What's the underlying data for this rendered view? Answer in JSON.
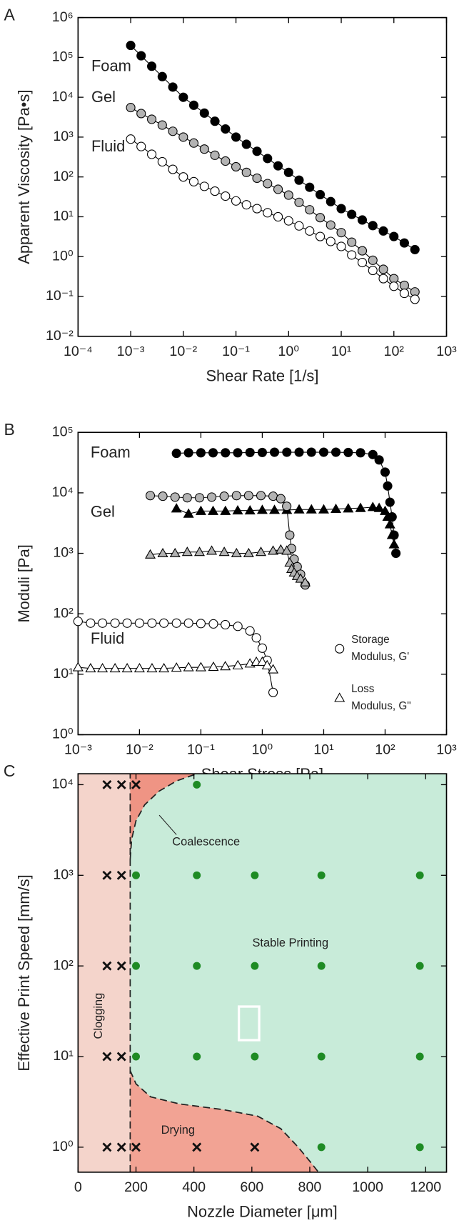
{
  "chart_data": [
    {
      "type": "line",
      "panel_label": "A",
      "y_label": "Apparent Viscosity [Pa•s]",
      "x_label": "Shear Rate [1/s]",
      "log_x": true,
      "log_y": true,
      "xlim": [
        0.0001,
        1000
      ],
      "ylim": [
        0.01,
        1000000
      ],
      "xticks": [
        {
          "value": 0.0001,
          "label": "10⁻⁴"
        },
        {
          "value": 0.001,
          "label": "10⁻³"
        },
        {
          "value": 0.01,
          "label": "10⁻²"
        },
        {
          "value": 0.1,
          "label": "10⁻¹"
        },
        {
          "value": 1,
          "label": "10⁰"
        },
        {
          "value": 10,
          "label": "10¹"
        },
        {
          "value": 100,
          "label": "10²"
        },
        {
          "value": 1000,
          "label": "10³"
        }
      ],
      "yticks": [
        {
          "value": 0.01,
          "label": "10⁻²"
        },
        {
          "value": 0.1,
          "label": "10⁻¹"
        },
        {
          "value": 1,
          "label": "10⁰"
        },
        {
          "value": 10,
          "label": "10¹"
        },
        {
          "value": 100,
          "label": "10²"
        },
        {
          "value": 1000,
          "label": "10³"
        },
        {
          "value": 10000,
          "label": "10⁴"
        },
        {
          "value": 100000,
          "label": "10⁵"
        },
        {
          "value": 1000000,
          "label": "10⁶"
        }
      ],
      "series": [
        {
          "name": "Foam",
          "color": "#000000",
          "marker": "circle",
          "x": [
            0.001,
            0.00158,
            0.00251,
            0.00398,
            0.00631,
            0.01,
            0.0158,
            0.0251,
            0.0398,
            0.0631,
            0.1,
            0.158,
            0.251,
            0.398,
            0.631,
            1,
            1.58,
            2.51,
            3.98,
            6.31,
            10,
            15.8,
            25.1,
            39.8,
            63.1,
            100,
            158,
            251
          ],
          "values": [
            200000,
            110000,
            60000,
            33000,
            18000,
            10000,
            6300,
            4000,
            2500,
            1600,
            1000,
            660,
            440,
            290,
            190,
            130,
            83,
            55,
            36,
            24,
            16,
            11.5,
            8.3,
            6.0,
            4.4,
            3.2,
            2.2,
            1.5
          ]
        },
        {
          "name": "Gel",
          "color": "#b3b3b3",
          "marker": "circle",
          "x": [
            0.001,
            0.00158,
            0.00251,
            0.00398,
            0.00631,
            0.01,
            0.0158,
            0.0251,
            0.0398,
            0.0631,
            0.1,
            0.158,
            0.251,
            0.398,
            0.631,
            1,
            1.58,
            2.51,
            3.98,
            6.31,
            10,
            15.8,
            25.1,
            39.8,
            63.1,
            100,
            158,
            251
          ],
          "values": [
            5500,
            3900,
            2800,
            2000,
            1400,
            1000,
            710,
            500,
            350,
            250,
            180,
            130,
            93,
            68,
            49,
            35,
            23,
            15,
            9.5,
            6.2,
            4.0,
            2.3,
            1.4,
            0.81,
            0.48,
            0.28,
            0.19,
            0.13
          ]
        },
        {
          "name": "Fluid",
          "color": "#ffffff",
          "marker": "circle",
          "x": [
            0.001,
            0.00158,
            0.00251,
            0.00398,
            0.00631,
            0.01,
            0.0158,
            0.0251,
            0.0398,
            0.0631,
            0.1,
            0.158,
            0.251,
            0.398,
            0.631,
            1,
            1.58,
            2.51,
            3.98,
            6.31,
            10,
            15.8,
            25.1,
            39.8,
            63.1,
            100,
            158,
            251
          ],
          "values": [
            890,
            580,
            370,
            240,
            155,
            100,
            76,
            58,
            44,
            33,
            25,
            20,
            16,
            12.6,
            10,
            7.9,
            5.9,
            4.4,
            3.2,
            2.4,
            1.8,
            1.1,
            0.71,
            0.45,
            0.28,
            0.18,
            0.12,
            0.085
          ]
        }
      ]
    },
    {
      "type": "line",
      "panel_label": "B",
      "y_label": "Moduli [Pa]",
      "x_label": "Shear Stress [Pa]",
      "log_x": true,
      "log_y": true,
      "xlim": [
        0.001,
        1000
      ],
      "ylim": [
        1,
        100000
      ],
      "xticks": [
        {
          "value": 0.001,
          "label": "10⁻³"
        },
        {
          "value": 0.01,
          "label": "10⁻²"
        },
        {
          "value": 0.1,
          "label": "10⁻¹"
        },
        {
          "value": 1,
          "label": "10⁰"
        },
        {
          "value": 10,
          "label": "10¹"
        },
        {
          "value": 100,
          "label": "10²"
        },
        {
          "value": 1000,
          "label": "10³"
        }
      ],
      "yticks": [
        {
          "value": 1,
          "label": "10⁰"
        },
        {
          "value": 10,
          "label": "10¹"
        },
        {
          "value": 100,
          "label": "10²"
        },
        {
          "value": 1000,
          "label": "10³"
        },
        {
          "value": 10000,
          "label": "10⁴"
        },
        {
          "value": 100000,
          "label": "10⁵"
        }
      ],
      "labels": [
        "Foam",
        "Gel",
        "Fluid"
      ],
      "legend": [
        {
          "marker": "circle",
          "label": [
            "Storage",
            "Modulus, G'"
          ]
        },
        {
          "marker": "triangle",
          "label": [
            "Loss",
            "Modulus, G\""
          ]
        }
      ],
      "series": [
        {
          "color": "#000000",
          "marker": "circle",
          "x": [
            0.04,
            0.063,
            0.1,
            0.158,
            0.251,
            0.398,
            0.631,
            1,
            1.58,
            2.51,
            3.98,
            6.31,
            10,
            15.8,
            25.1,
            39.8,
            63.1,
            80,
            100,
            110,
            120,
            130,
            140,
            150
          ],
          "values": [
            45000,
            46000,
            46000,
            46000,
            46000,
            46000,
            46500,
            46500,
            47000,
            47000,
            47000,
            47000,
            47000,
            47000,
            46500,
            46000,
            43000,
            35000,
            22000,
            13000,
            7000,
            4000,
            2000,
            1000
          ]
        },
        {
          "color": "#000000",
          "marker": "triangle",
          "x": [
            0.04,
            0.063,
            0.1,
            0.158,
            0.251,
            0.398,
            0.631,
            1,
            1.58,
            2.51,
            3.98,
            6.31,
            10,
            15.8,
            25.1,
            39.8,
            63.1,
            80,
            100,
            110,
            120,
            130,
            140
          ],
          "values": [
            5500,
            4500,
            5000,
            5000,
            5000,
            5100,
            5100,
            5200,
            5200,
            5200,
            5300,
            5300,
            5300,
            5400,
            5500,
            5600,
            5800,
            5600,
            5000,
            4000,
            3000,
            2000,
            1400
          ]
        },
        {
          "color": "#b3b3b3",
          "marker": "circle",
          "x": [
            0.015,
            0.024,
            0.038,
            0.06,
            0.095,
            0.15,
            0.24,
            0.38,
            0.6,
            0.95,
            1.5,
            2.0,
            2.5,
            2.8,
            3.0,
            3.3,
            3.7,
            4.2,
            5.0
          ],
          "values": [
            9000,
            8800,
            8500,
            8300,
            8300,
            8500,
            8800,
            9000,
            9000,
            9000,
            8800,
            8000,
            6000,
            2000,
            1200,
            800,
            600,
            450,
            300
          ]
        },
        {
          "color": "#b3b3b3",
          "marker": "triangle",
          "x": [
            0.015,
            0.024,
            0.038,
            0.06,
            0.095,
            0.15,
            0.24,
            0.38,
            0.6,
            0.95,
            1.5,
            2.0,
            2.5,
            2.8,
            3.0,
            3.3,
            3.7,
            4.2,
            5.0
          ],
          "values": [
            950,
            1000,
            1000,
            1050,
            1050,
            1100,
            1050,
            1000,
            1000,
            1050,
            1100,
            1150,
            1100,
            700,
            550,
            480,
            420,
            380,
            330
          ]
        },
        {
          "color": "#ffffff",
          "marker": "circle",
          "x": [
            0.001,
            0.0016,
            0.0025,
            0.004,
            0.0063,
            0.01,
            0.016,
            0.025,
            0.04,
            0.063,
            0.1,
            0.16,
            0.25,
            0.4,
            0.63,
            0.8,
            1.0,
            1.2,
            1.5
          ],
          "values": [
            75,
            70,
            70,
            70,
            70,
            70,
            70,
            70,
            70,
            70,
            69,
            68,
            66,
            62,
            52,
            40,
            27,
            17,
            5
          ]
        },
        {
          "color": "#ffffff",
          "marker": "triangle",
          "x": [
            0.001,
            0.0016,
            0.0025,
            0.004,
            0.0063,
            0.01,
            0.016,
            0.025,
            0.04,
            0.063,
            0.1,
            0.16,
            0.25,
            0.4,
            0.63,
            0.8,
            1.0,
            1.2,
            1.5
          ],
          "values": [
            13,
            12.5,
            12.5,
            12.5,
            12.5,
            12.5,
            12.5,
            12.5,
            12.8,
            13,
            13,
            13.2,
            13.5,
            14,
            15,
            16,
            16,
            14,
            12
          ]
        }
      ]
    },
    {
      "type": "scatter",
      "panel_label": "C",
      "y_label": "Effective Print Speed [mm/s]",
      "x_label": "Nozzle Diameter [μm]",
      "log_x": false,
      "log_y": true,
      "xlim": [
        0,
        1272
      ],
      "ylim": [
        0.53,
        13200
      ],
      "xticks": [
        0,
        200,
        400,
        600,
        800,
        1000,
        1200
      ],
      "yticks": [
        {
          "value": 1,
          "label": "10⁰"
        },
        {
          "value": 10,
          "label": "10¹"
        },
        {
          "value": 100,
          "label": "10²"
        },
        {
          "value": 1000,
          "label": "10³"
        },
        {
          "value": 10000,
          "label": "10⁴"
        }
      ],
      "regions": [
        {
          "name": "Stable Printing",
          "color": "#c8ebd9",
          "x": [
            0,
            1272,
            1272,
            0
          ],
          "y": [
            0.53,
            0.53,
            13200,
            13200
          ]
        },
        {
          "name": "Clogging",
          "color": "#f4d4cb",
          "x": [
            0,
            180,
            180,
            0
          ],
          "y": [
            0.53,
            0.53,
            13200,
            13200
          ]
        },
        {
          "name": "Coalescence",
          "color": "#ef9484",
          "x": [
            180,
            180,
            185,
            200,
            230,
            280,
            340,
            410
          ],
          "y": [
            13200,
            1500,
            2500,
            4000,
            6000,
            8500,
            11000,
            13200
          ]
        },
        {
          "name": "Drying",
          "color": "#f2a394",
          "x": [
            180,
            180,
            200,
            250,
            350,
            500,
            620,
            700,
            760,
            800,
            830
          ],
          "y": [
            0.53,
            7,
            5,
            3.6,
            3.0,
            2.6,
            2.2,
            1.6,
            1.0,
            0.7,
            0.53
          ]
        }
      ],
      "boundaries": [
        {
          "x": [
            180,
            180
          ],
          "y": [
            0.53,
            13200
          ]
        },
        {
          "x": [
            180,
            185,
            200,
            230,
            280,
            340,
            410
          ],
          "y": [
            1500,
            2500,
            4000,
            6000,
            8500,
            11000,
            13200
          ]
        },
        {
          "x": [
            180,
            200,
            250,
            350,
            500,
            620,
            700,
            760,
            800,
            830
          ],
          "y": [
            7,
            5,
            3.6,
            3.0,
            2.6,
            2.2,
            1.6,
            1.0,
            0.7,
            0.53
          ]
        }
      ],
      "series": [
        {
          "color": "#111111",
          "marker": "cross",
          "x": [
            100,
            150,
            200,
            100,
            150,
            100,
            150,
            100,
            150,
            100,
            150,
            200,
            410,
            610
          ],
          "values": [
            10000,
            10000,
            10000,
            1000,
            1000,
            100,
            100,
            10,
            10,
            1,
            1,
            1,
            1,
            1
          ]
        },
        {
          "color": "#1e8b24",
          "marker": "dot",
          "x": [
            410,
            200,
            410,
            610,
            840,
            1180,
            200,
            410,
            610,
            840,
            1180,
            200,
            410,
            610,
            840,
            1180,
            840,
            1180
          ],
          "values": [
            10000,
            1000,
            1000,
            1000,
            1000,
            1000,
            100,
            100,
            100,
            100,
            100,
            10,
            10,
            10,
            10,
            10,
            1,
            1
          ]
        }
      ]
    }
  ]
}
